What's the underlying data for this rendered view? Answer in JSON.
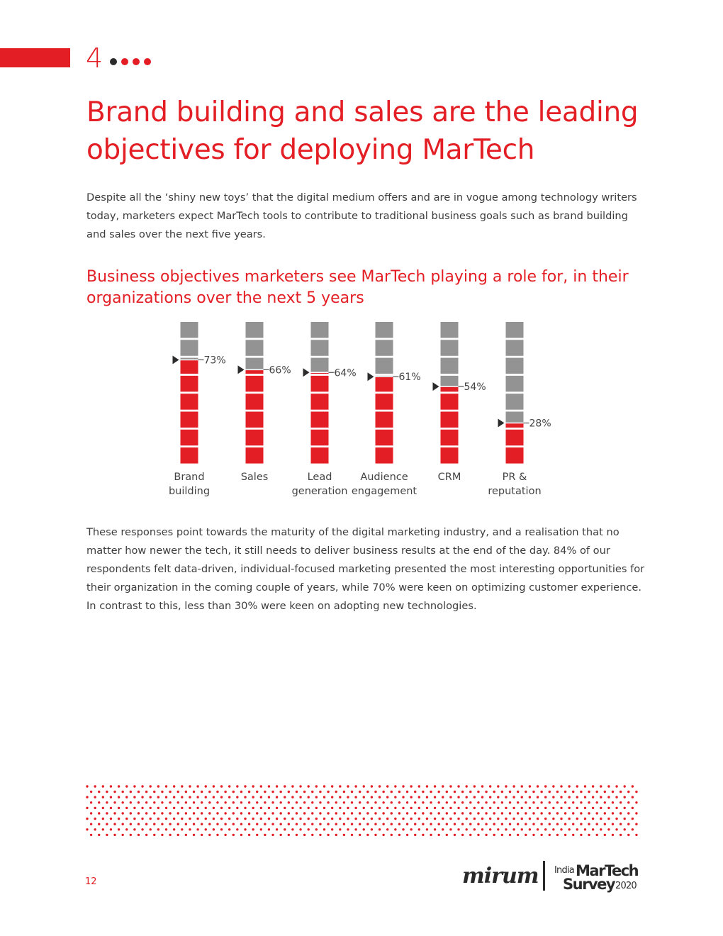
{
  "section": {
    "number": "4"
  },
  "colors": {
    "accent": "#e31e24",
    "filled": "#e31e24",
    "empty": "#939393",
    "text": "#3d3d3d",
    "marker": "#2b2b2b"
  },
  "headline": "Brand building and sales are the leading objectives for deploying MarTech",
  "intro": "Despite all the ‘shiny new toys’ that the digital medium offers and are in vogue among technology writers today, marketers expect MarTech tools to contribute to traditional business goals such as brand building and sales over the next five years.",
  "chart_title": "Business objectives marketers see MarTech playing a role for, in their organizations over the next 5 years",
  "chart_data": {
    "type": "bar",
    "title": "Business objectives marketers see MarTech playing a role for, in their organizations over the next 5 years",
    "categories": [
      [
        "Brand",
        "building"
      ],
      [
        "Sales"
      ],
      [
        "Lead",
        "generation"
      ],
      [
        "Audience",
        "engagement"
      ],
      [
        "CRM"
      ],
      [
        "PR &",
        "reputation"
      ]
    ],
    "values": [
      73,
      66,
      64,
      61,
      54,
      28
    ],
    "value_labels": [
      "73%",
      "66%",
      "64%",
      "61%",
      "54%",
      "28%"
    ],
    "unit": "%",
    "ylim": [
      0,
      100
    ],
    "grid": false,
    "legend": "none"
  },
  "body": "These responses point towards the maturity of the digital marketing industry, and a realisation that no matter how newer the tech, it still needs to deliver business results at the end of the day. 84% of our respondents felt data-driven, individual-focused marketing presented the most interesting opportunities for their organization in the coming couple of years, while 70% were keen on optimizing customer experience. In contrast to this, less than 30% were keen on adopting new technologies.",
  "footer": {
    "page_number": "12",
    "logo_mirum": "mirum",
    "survey_logo": {
      "line1": "India",
      "line2": "MarTech",
      "line3": "Survey",
      "line4": "2020"
    }
  }
}
